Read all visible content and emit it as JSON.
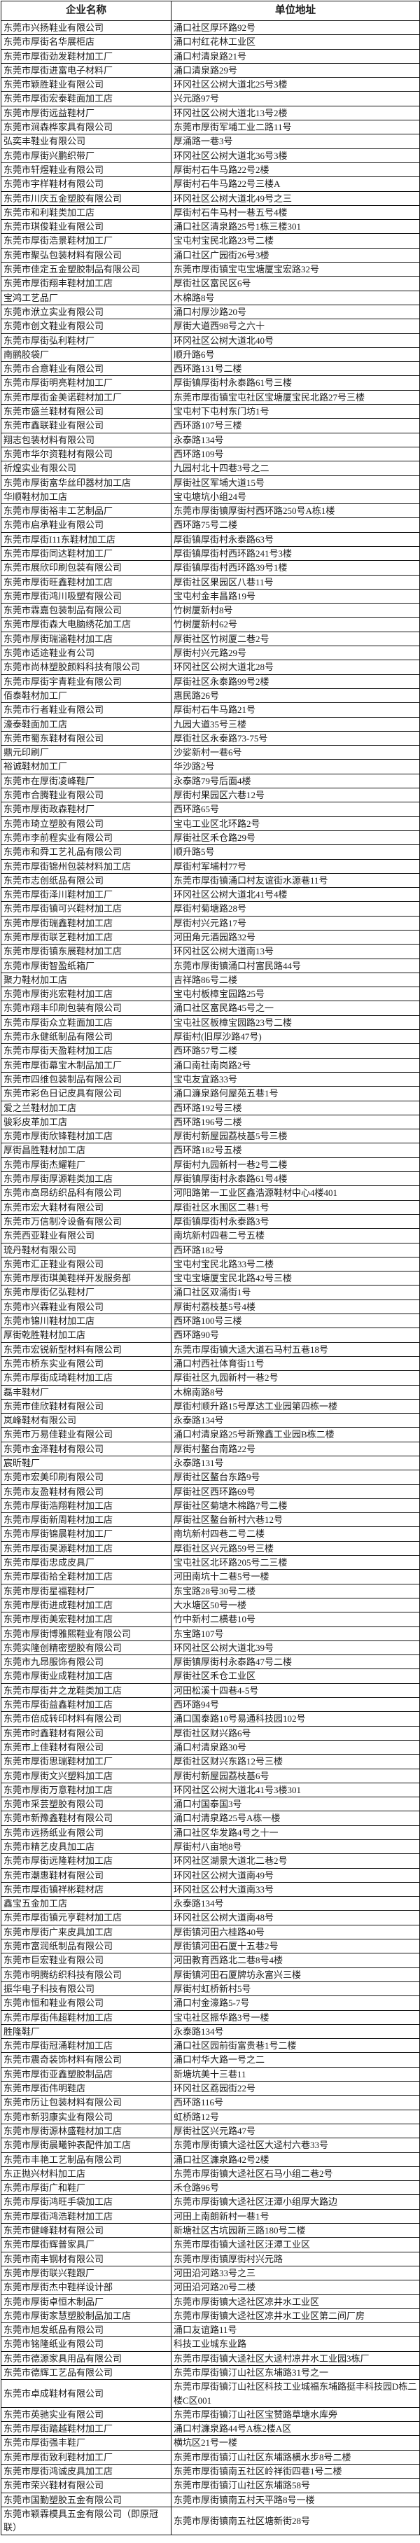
{
  "table": {
    "columns": [
      "企业名称",
      "单位地址"
    ],
    "rows": [
      [
        "东莞市兴扬鞋业有限公司",
        "涌口社区厚环路92号"
      ],
      [
        "东莞市厚街名华展柜店",
        "涌口村红花林工业区"
      ],
      [
        "东莞市厚街劲发鞋材加工厂",
        "涌口村清泉路21号"
      ],
      [
        "东莞市厚街进富电子材料厂",
        "涌口清泉路29号"
      ],
      [
        "东莞市颖胜鞋业有限公司",
        "环冈社区公树大道北25号3楼"
      ],
      [
        "东莞市厚街宏泰鞋面加工店",
        "兴元路97号"
      ],
      [
        "东莞市厚街远益鞋材厂",
        "环冈社区公树大道北13号2楼"
      ],
      [
        "东莞市涧森桦家具有限公司",
        "东莞市厚街军埔工业二路11号"
      ],
      [
        "弘奕丰鞋业有限公司",
        "厚涌路一巷3号"
      ],
      [
        "东莞市厚街兴鹏织带厂",
        "环冈社区公树大道北36号3楼"
      ],
      [
        "东莞市轩煜鞋业有限公司",
        "厚街村石牛马路22号2楼"
      ],
      [
        "东莞市宇样鞋材有限公司",
        "厚街村石牛马路22号三楼A"
      ],
      [
        "东莞市川庆五金塑胶有限公司",
        "环冈社区公树大道北49号之三"
      ],
      [
        "东莞市和利鞋类加工店",
        "厚街村石牛马村一巷五号4楼"
      ],
      [
        "东莞市琪俊鞋业有限公司",
        "涌口社区清泉路25号1栋三楼301"
      ],
      [
        "东莞市厚街浩景鞋材加工厂",
        "宝屯村宝民北路23号二楼"
      ],
      [
        "东莞市聚弘包装材料有限公司",
        "涌口社区广园街26号3楼"
      ],
      [
        "东莞市佳定五金塑胶制品有限公司",
        "东莞市厚街镇宝屯宝塘厦宝宏路32号"
      ],
      [
        "东莞市厚街翔丰鞋材加工店",
        "厚街社区富民区6号"
      ],
      [
        "宝鸿工艺品厂",
        "木棉路8号"
      ],
      [
        "东莞市洑立实业有限公司",
        "涌口村厚沙路20号"
      ],
      [
        "东莞市创文鞋业有限公司",
        "厚街大道西98号之六十"
      ],
      [
        "东莞市厚街弘利鞋材厂",
        "环冈社区公树大道北40号"
      ],
      [
        "南鹂胶袋厂",
        "顺升路6号"
      ],
      [
        "东莞市合意鞋业有限公司",
        "西环路131号二楼"
      ],
      [
        "东莞市厚街明亮鞋材加工厂",
        "厚街镇厚街村永泰路61号三楼"
      ],
      [
        "东莞市厚街金美诺鞋材加工厂",
        "东莞市厚街镇宝屯社区宝塘厦宝民北路27号三楼"
      ],
      [
        "东莞市盛兰鞋材有限公司",
        "宝屯村下屯村东门坊1号"
      ],
      [
        "东莞市鑫联鞋业有限公司",
        "西环路107号三楼"
      ],
      [
        "翔志包装材料有限公司",
        "永泰路134号"
      ],
      [
        "东莞市华尔资鞋材有限公司",
        "西环路109号"
      ],
      [
        "祈煌实业有限公司",
        "九园村北十四巷3号之二"
      ],
      [
        "东莞市厚街富华丝印器材加工店",
        "厚街社区军埔大道15号"
      ],
      [
        "华顺鞋材加工店",
        "宝屯塘坑小组24号"
      ],
      [
        "东莞市厚街裕丰工艺制品厂",
        "东莞市厚街镇厚街村西环路250号A栋1楼"
      ],
      [
        "东莞市启承鞋业有限公司",
        "西环路75号二楼"
      ],
      [
        "东莞市厚街I11东鞋材加工店",
        "厚街镇厚街村永泰路63号"
      ],
      [
        "东莞市厚街同达鞋材加工厂",
        "厚街镇厚街村西环路241号3楼"
      ],
      [
        "东莞市展欣印刷包装有限公司",
        "厚街镇厚街村西环路39号1楼"
      ],
      [
        "东莞市厚街旺鑫鞋材加工店",
        "厚街社区果园区八巷11号"
      ],
      [
        "东莞市厚街鸿川吸塑有限公司",
        "宝屯村金丰昌路19号"
      ],
      [
        "东莞市霖嘉包装制品有限公司",
        "竹树厦新村8号"
      ],
      [
        "东莞市厚街森大电脑绣花加工店",
        "竹树厦新村62号"
      ],
      [
        "东莞市厚街瑞涵鞋材加工店",
        "厚街社区竹树厦二巷2号"
      ],
      [
        "东莞市适途鞋业有公司",
        "厚街村兴元路29号"
      ],
      [
        "东莞市尚林塑胶颜料科技有限公司",
        "环冈社区公树大道北28号"
      ],
      [
        "东莞市厚街宇青鞋业有限公司",
        "厚街社区永泰路99号2楼"
      ],
      [
        "佰泰鞋材加工厂",
        "惠民路26号"
      ],
      [
        "东莞市行者鞋业有限公司",
        "厚街村石牛马路21号"
      ],
      [
        "濠泰鞋面加工店",
        "九园大道35号三楼"
      ],
      [
        "东莞市蜀东鞋材有限公司",
        "厚街社区永泰路73-75号"
      ],
      [
        "鼎元印刷厂",
        "沙娑新村一巷6号"
      ],
      [
        "裕诚鞋材加工厂",
        "华沙路2号"
      ],
      [
        "东莞市在厚街凌峰鞋厂",
        "永泰路79号后面4楼"
      ],
      [
        "东莞市合腾鞋业有限公司",
        "厚街村果园区六巷12号"
      ],
      [
        "东莞市厚街政森鞋材厂",
        "西环路65号"
      ],
      [
        "东莞市琦立塑胶有限公司",
        "宝屯工业区北环路2号"
      ],
      [
        "东莞市李前程实业有限公司",
        "厚街社区禾仓路29号"
      ],
      [
        "东莞市和舜工艺礼品有限公司",
        "顺升路5号"
      ],
      [
        "东莞市厚街锦州包装材料加工店",
        "厚街村军埔村77号"
      ],
      [
        "东莞市志创纸品有限公司",
        "东莞市厚街镇涌口村友谊街水源巷11号"
      ],
      [
        "东莞市厚街泽川鞋材加工厂",
        "环冈社区公树大道北41号4楼"
      ],
      [
        "东莞市厚街镇可兴鞋材加工店",
        "厚街村菊塘路28号"
      ],
      [
        "东莞市厚街瑞鑫鞋材加工店",
        "厚街村兴元路17号"
      ],
      [
        "东莞市厚街联艺鞋材加工店",
        "河田角元酒园路32号"
      ],
      [
        "东莞市厚街镇东展鞋材加工店",
        "环冈社区公树大道南13号"
      ],
      [
        "东莞市厚街智盈纸箱厂",
        "东莞市厚街镇涌口村富民路44号"
      ],
      [
        "聚力鞋材加工店",
        "吉祥路86号二楼"
      ],
      [
        "东莞市厚街兆宏鞋材加工店",
        "宝屯村板樟宝园路25号"
      ],
      [
        "东莞市翔丰印刷包装有限公司",
        "涌口社区富民路45号之一"
      ],
      [
        "东莞市厚街众立鞋面加工店",
        "宝屯社区板樟宝园路23号二楼"
      ],
      [
        "东莞市永健纸制品有限公司",
        "厚街村(旧厚沙路47号)"
      ],
      [
        "东莞市厚街天盈鞋材加工店",
        "西环路57号二楼"
      ],
      [
        "东莞市厚街幕宝木制品加工厂",
        "涌口南社南岗路2号"
      ],
      [
        "东莞市四维包装制品有限公司",
        "宝屯友宜路33号"
      ],
      [
        "东莞市彩色日记皮具有限公司",
        "涌口濂泉路何屋苑五巷1号"
      ],
      [
        "爱之兰鞋材加工店",
        "西环路192号三楼"
      ],
      [
        "骏彩皮革加工店",
        "西环路196号二楼"
      ],
      [
        "东莞市厚街欣锋鞋材加工店",
        "厚街村新屋园荔枝基5号三楼"
      ],
      [
        "厚街昌胜鞋材加工店",
        "西环路182号五楼"
      ],
      [
        "东莞市厚街杰耀鞋厂",
        "厚街村九园新村一巷2号二楼"
      ],
      [
        "东莞市厚街厚源鞋类加工店",
        "厚街镇厚街村永泰路61号4楼"
      ],
      [
        "东莞市高昂纺织品科有限公司",
        "河阳路第一工业区鑫浩源鞋材中心4楼401"
      ],
      [
        "东莞市宏大鞋材有限公司",
        "厚街社区水围区二巷1号"
      ],
      [
        "东莞市万信制冷设备有限公司",
        "厚街镇厚街村永泰路3号"
      ],
      [
        "东莞西亚鞋业有限公司",
        "南坑新村四巷二号五楼"
      ],
      [
        "琉丹鞋材有限公司",
        "西环路182号"
      ],
      [
        "东莞市汇正鞋业有限公司",
        "宝屯村宝民北路33号二楼"
      ],
      [
        "东莞市厚街琪美鞋样开发服务部",
        "宝屯宝塘厦宝民北路42号三楼"
      ],
      [
        "东莞市厚街亿弘鞋材厂",
        "涌口社区双涌街1号"
      ],
      [
        "东莞市兴霖鞋业有限公司",
        "厚街村荔枝基5号4楼"
      ],
      [
        "东莞市锦川鞋材加工店",
        "西环路100号三楼"
      ],
      [
        "厚街乾胜鞋材加工店",
        "西环路90号"
      ],
      [
        "东莞市宏锐新型材料有限公司",
        "东莞市厚街镇大迳大道石马村五巷18号"
      ],
      [
        "东莞市桥东实业有限公司",
        "涌口村西社体育街11号"
      ],
      [
        "东莞市厚街成琦鞋材加工店",
        "厚街社区九园新村一巷2号"
      ],
      [
        "磊丰鞋材厂",
        "木棉南路8号"
      ],
      [
        "东莞市佳欣鞋材有限公司",
        "厚街村顺升路15号厚达工业园第四栋一楼"
      ],
      [
        "岚峰鞋材有限公司",
        "永泰路134号"
      ],
      [
        "东莞市万易佳鞋业有限公司",
        "涌口村清泉路25号新豫鑫工业园B栋二楼"
      ],
      [
        "东莞市金泽鞋材有限公司",
        "厚街村鳌台南路22号"
      ],
      [
        "宸昕鞋厂",
        "永泰路131号"
      ],
      [
        "东莞市宏美印刷有限公司",
        "厚街社区鳌台东路9号"
      ],
      [
        "东莞市友盈鞋材有限公司",
        "厚街社区西环路69号"
      ],
      [
        "东莞市厚街浩翔鞋材加工店",
        "厚街社区菊塘木棉路7号二楼"
      ],
      [
        "东莞市厚街新周鞋材加工店",
        "厚街社区鳌台新村六巷12号"
      ],
      [
        "东莞市厚街锦晨鞋材加工厂",
        "南坑新村四巷二号二楼"
      ],
      [
        "东莞市厚街昊源鞋材加工店",
        "厚街社区兴元路59号三楼"
      ],
      [
        "东莞市厚街忠成皮具厂",
        "宝屯社区北环路205号二三楼"
      ],
      [
        "东莞市厚街拾全鞋材加工店",
        "河田南坑十二巷5号一楼"
      ],
      [
        "东莞市厚街星福鞋材厂",
        "东宝路28号30号二楼"
      ],
      [
        "东莞市厚街进成鞋材加工店",
        "大水塘区50号一楼"
      ],
      [
        "东莞市厚街美宏鞋材加工店",
        "竹中新村二横巷10号"
      ],
      [
        "东莞市厚街博雅熙鞋业有限公司",
        "东宝路107号"
      ],
      [
        "东莞实隆创精密塑胶有限公司",
        "环冈社区公树大道北39号"
      ],
      [
        "东莞市九昂服饰有限公司",
        "厚街镇厚街村永泰路47号二楼"
      ],
      [
        "东莞市厚街业成鞋材加工店",
        "厚街社区禾仓工业区"
      ],
      [
        "东莞市厚街井之龙鞋类加工店",
        "河田松溪十四巷4-5号"
      ],
      [
        "东莞市厚街益鑫鞋材加工店",
        "西环路94号"
      ],
      [
        "东莞市倍成转印材料有限公司",
        "涌口国泰路10号易通科技园102号"
      ],
      [
        "东莞市时鑫鞋材有限公司",
        "厚街社区财兴路6号"
      ],
      [
        "东莞市上佳鞋材有限公司",
        "涌口村清泉路30号"
      ],
      [
        "东莞市厚街思瑞鞋材加工厂",
        "厚街社区财兴东路12号三楼"
      ],
      [
        "东莞市厚街文兴塑料加工店",
        "厚街村新屋园荔枝基6号"
      ],
      [
        "东莞市厚街万意鞋材加工店",
        "环冈社区公树大道北41号3楼301"
      ],
      [
        "东莞市采芸塑胶有限公司",
        "涌口村国泰国3号"
      ],
      [
        "东莞市新豫鑫鞋材有限公司",
        "涌口村清泉路25号A栋一楼"
      ],
      [
        "东莞市远扬纸业有限公司",
        "涌口社区华发路4号之十一"
      ],
      [
        "东莞市精艺皮具加工店",
        "厚街村八亩地8号"
      ],
      [
        "东莞市厚街远隆鞋材加工店",
        "环冈社区湖景大道北二巷2号"
      ],
      [
        "东莞市潮惠鞋材有限公司",
        "环冈社区公树大道南49号"
      ],
      [
        "东莞市厚街镇祥彬鞋材店",
        "环冈社区公村大道南33号"
      ],
      [
        "鑫宝五金加工店",
        "永泰路134号"
      ],
      [
        "东莞市厚街镇元亨鞋材加工店",
        "环冈社区公树大道南48号"
      ],
      [
        "东莞市厚街广来皮具加工店",
        "厚街镇河田六桂路40号"
      ],
      [
        "东莞市富润纸制品有限公司",
        "厚街镇河田石厦十五巷2号"
      ],
      [
        "东莞市巨宏鞋业有限公司",
        "河田教育西路北二巷8号4楼"
      ],
      [
        "东莞市明腾纺织科技有限公司",
        "厚街镇河田石厦牌坊永富兴三楼"
      ],
      [
        "振华电子科技有限公司",
        "厚街村虹桥新村5号"
      ],
      [
        "东莞市恒和鞋业有限公司",
        "涌口村金濠路5-7号"
      ],
      [
        "东莞市厚街伟超鞋材加工店",
        "宝屯社区振华路3号一楼"
      ],
      [
        "胜隆鞋厂",
        "永泰路134号"
      ],
      [
        "东莞市厚街冠涌鞋材加工店",
        "涌口社区园前街富贵巷1号二楼"
      ],
      [
        "东莞市震奇装饰材料有限公司",
        "涌口村华大路一号之二"
      ],
      [
        "东莞市厚街亚鑫塑胶制品店",
        "新塘坑美十三巷11"
      ],
      [
        "东莞市厚街伟明鞋店",
        "环冈社区荔园街22号"
      ],
      [
        "东莞市历让包装材料有限公司",
        "西环路116号"
      ],
      [
        "东莞市新羽康实业有限公司",
        "虹桥路12号"
      ],
      [
        "东莞市厚街源林盛鞋材加工店",
        "厚街社区兴元路47号"
      ],
      [
        "东莞市厚街晨曦钟表配件加工店",
        "东莞市厚街镇大迳社区大迳村六巷33号"
      ],
      [
        "东莞市丰艳工艺制品有限公司",
        "涌口社区濂泉路42号2楼"
      ],
      [
        "东正抛兴材料加工店",
        "东莞市厚街镇大迳社区石马小组二巷2号"
      ],
      [
        "东莞市厚街广和鞋厂",
        "禾仓路96号"
      ],
      [
        "东莞市厚街鸿旺手袋加工店",
        "东莞市厚街镇大迳社区汪潭小组厚大路边"
      ],
      [
        "东莞市厚街鸿浩鞋材加工店",
        "河田上南朗新村一巷1号"
      ],
      [
        "东莞市健峰鞋材有限公司",
        "新塘社区古坑园新三路180号二楼"
      ],
      [
        "东莞市厚街辉普家具厂",
        "东莞市厚街镇大迳社区汪潭工业区"
      ],
      [
        "东莞市南丰钢材有限公司",
        "东莞市厚街镇厚街村兴元路"
      ],
      [
        "东莞市厚街联兴鞋跟厂",
        "河田沿河路33号之三"
      ],
      [
        "东莞市厚街杰中鞋样设计部",
        "河田沿河路20号二楼"
      ],
      [
        "东莞市厚街卓恒木制品厂",
        "东莞市厚街镇大迳社区凉井水工业区"
      ],
      [
        "东莞市厚街家慧塑胶制品加工店",
        "东莞市厚街镇大迳社区凉井水工业区第二间厂房"
      ],
      [
        "东莞市旭发纸品有限公司",
        "涌口友谊路11号"
      ],
      [
        "东莞市铭隆纸业有限公司",
        "科技工业城东业路"
      ],
      [
        "东莞市德源家具用品有限公司",
        "东莞市厚街镇大迳社区大迳村凉井水工业园3栋厂"
      ],
      [
        "东莞市德辉工艺品有限公司",
        "东莞市厚街镇汀山社区东埔路31号之一"
      ],
      [
        "东莞市卓成鞋材有限公司",
        "东莞市厚街镇汀山社区科技工业城福东埔路挺丰科技园D栋二楼C区001"
      ],
      [
        "东莞市英驰实业有限公司",
        "东莞市厚街镇汀山社区宝赞路草塘水库旁"
      ],
      [
        "东莞市厚街踏越鞋材加工厂",
        "涌口村濂泉路44号A栋2楼A区"
      ],
      [
        "东莞市厚街强丰鞋厂",
        "横坑区21号一楼"
      ],
      [
        "东莞市厚街致利鞋材加工厂",
        "东莞市厚街镇汀山社区东埔路横水步8号二楼"
      ],
      [
        "东莞市厚街鸿诚皮具加工店",
        "东莞市厚街镇南五社区岭祥街四巷1号二楼"
      ],
      [
        "东莞市荣兴鞋材有限公司",
        "东莞市厚街镇汀山社区东埔路58号"
      ],
      [
        "东莞市国勤塑胶五金有限公司",
        "东莞市厚街镇南五村天平路8号一楼"
      ],
      [
        "东莞市颖霖模具五金有限公司（即原冠联）",
        "东莞市厚街镇南五社区塘新街28号"
      ]
    ]
  }
}
